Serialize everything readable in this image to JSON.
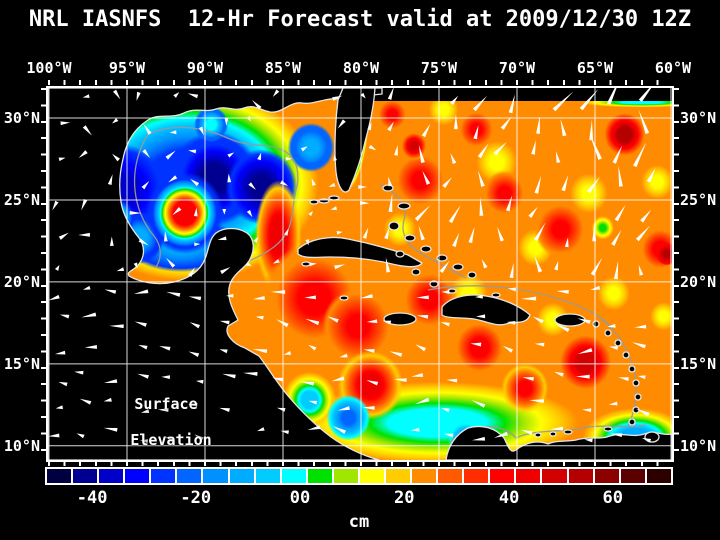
{
  "title": "NRL IASNFS  12-Hr Forecast valid at 2009/12/30 12Z",
  "axes": {
    "lon_labels": [
      {
        "label": "100°W",
        "deg": 100
      },
      {
        "label": "95°W",
        "deg": 95
      },
      {
        "label": "90°W",
        "deg": 90
      },
      {
        "label": "85°W",
        "deg": 85
      },
      {
        "label": "80°W",
        "deg": 80
      },
      {
        "label": "75°W",
        "deg": 75
      },
      {
        "label": "70°W",
        "deg": 70
      },
      {
        "label": "65°W",
        "deg": 65
      },
      {
        "label": "60°W",
        "deg": 60
      }
    ],
    "lat_labels": [
      {
        "label": "30°N",
        "deg": 30
      },
      {
        "label": "25°N",
        "deg": 25
      },
      {
        "label": "20°N",
        "deg": 20
      },
      {
        "label": "15°N",
        "deg": 15
      },
      {
        "label": "10°N",
        "deg": 10
      }
    ]
  },
  "annotation": {
    "line1": "Surface",
    "line2": "Elevation"
  },
  "vectors": {
    "color": "#ffffff"
  },
  "colorbar": {
    "unit": "cm",
    "tick_labels": [
      {
        "label": "-40",
        "pct": 7.5
      },
      {
        "label": "-20",
        "pct": 24.0
      },
      {
        "label": "00",
        "pct": 40.6
      },
      {
        "label": "20",
        "pct": 57.2
      },
      {
        "label": "40",
        "pct": 73.9
      },
      {
        "label": "60",
        "pct": 90.4
      }
    ],
    "cell_colors": [
      "#000041",
      "#000090",
      "#0000C8",
      "#0000FF",
      "#0033FF",
      "#0066FF",
      "#0090FF",
      "#00ACFF",
      "#00CCFF",
      "#00FFFF",
      "#00E100",
      "#A0E600",
      "#FFFF00",
      "#FFCC00",
      "#FF8C00",
      "#FF5A00",
      "#FF2D00",
      "#FF0000",
      "#F00000",
      "#D20000",
      "#B40000",
      "#8C0000",
      "#5A0000",
      "#2D0000"
    ],
    "cell_centers_cm": [
      -45,
      -40,
      -35,
      -30,
      -25,
      -20,
      -15,
      -10,
      -5,
      0,
      5,
      10,
      15,
      20,
      25,
      30,
      35,
      40,
      45,
      50,
      55,
      60,
      65,
      70
    ]
  },
  "chart_data": {
    "type": "heatmap",
    "title": "NRL IASNFS  12-Hr Forecast valid at 2009/12/30 12Z",
    "variable": "Surface Elevation",
    "unit": "cm",
    "x_ticks": [
      "100°W",
      "95°W",
      "90°W",
      "85°W",
      "80°W",
      "75°W",
      "70°W",
      "65°W",
      "60°W"
    ],
    "y_ticks": [
      "30°N",
      "25°N",
      "20°N",
      "15°N",
      "10°N"
    ],
    "x_range_deg_w": [
      100,
      60
    ],
    "y_range_deg_n": [
      10,
      30
    ],
    "colorbar_ticks_cm": [
      -40,
      -20,
      0,
      20,
      40,
      60
    ],
    "colorbar_range_cm": [
      -47.5,
      72.5
    ],
    "colorbar_cells": 24,
    "ambient_cm": {
      "gulf_of_mexico": -25,
      "atlantic_and_caribbean": 25
    },
    "features": [
      {
        "name": "gulf-of-mexico-basin-low",
        "lon_w": 91.0,
        "lat_n": 26.0,
        "value_cm": -25,
        "edge_cm": 25,
        "r_deg": 9.6,
        "ry_deg": 6.9
      },
      {
        "name": "west-gulf-low",
        "lon_w": 95.3,
        "lat_n": 25.6,
        "value_cm": -33,
        "edge_cm": -25,
        "r_deg": 2.8
      },
      {
        "name": "central-gulf-deep-low-1",
        "lon_w": 89.4,
        "lat_n": 26.3,
        "value_cm": -42,
        "edge_cm": -25,
        "r_deg": 2.9
      },
      {
        "name": "central-gulf-deep-low-2",
        "lon_w": 86.4,
        "lat_n": 25.8,
        "value_cm": -40,
        "edge_cm": -25,
        "r_deg": 2.3
      },
      {
        "name": "bay-of-campeche-band",
        "lon_w": 91.5,
        "lat_n": 22.3,
        "value_cm": -10,
        "edge_cm": -25,
        "r_deg": 3.6,
        "ry_deg": 1.7
      },
      {
        "name": "campeche-cyan-spot",
        "lon_w": 94.2,
        "lat_n": 22.7,
        "value_cm": -8,
        "edge_cm": -25,
        "r_deg": 1.6
      },
      {
        "name": "ne-gulf-shelf-spot",
        "lon_w": 89.6,
        "lat_n": 29.6,
        "value_cm": 0,
        "edge_cm": -22,
        "r_deg": 1.1
      },
      {
        "name": "west-florida-shelf",
        "lon_w": 83.2,
        "lat_n": 28.2,
        "value_cm": -8,
        "edge_cm": -22,
        "r_deg": 1.5
      },
      {
        "name": "gulf-warm-core-eddy",
        "lon_w": 91.3,
        "lat_n": 24.2,
        "value_cm": 42,
        "edge_cm": -25,
        "r_deg": 2.5
      },
      {
        "name": "west-gulf-green-spot",
        "lon_w": 95.7,
        "lat_n": 23.9,
        "value_cm": 5,
        "edge_cm": -25,
        "r_deg": 1.2
      },
      {
        "name": "south-caribbean-low-band",
        "lon_w": 75.1,
        "lat_n": 11.4,
        "value_cm": 0,
        "edge_cm": 25,
        "r_deg": 10.5,
        "ry_deg": 2.9
      },
      {
        "name": "se-corner-low-band",
        "lon_w": 62.4,
        "lat_n": 10.5,
        "value_cm": -10,
        "edge_cm": 20,
        "r_deg": 3.4,
        "ry_deg": 1.8
      },
      {
        "name": "sw-caribbean-low",
        "lon_w": 83.3,
        "lat_n": 12.8,
        "value_cm": -5,
        "edge_cm": 20,
        "r_deg": 1.7
      },
      {
        "name": "florida-gulf-stream-band",
        "lon_w": 80.4,
        "lat_n": 28.3,
        "value_cm": -28,
        "edge_cm": 25,
        "r_deg": 0.85,
        "ry_deg": 3.2,
        "rot_deg": 10
      },
      {
        "name": "yucatan-loop-current-jet",
        "lon_w": 85.3,
        "lat_n": 22.8,
        "value_cm": 45,
        "edge_cm": 20,
        "r_deg": 1.5,
        "ry_deg": 3.4
      },
      {
        "name": "atlantic-yellow-1",
        "lon_w": 74.7,
        "lat_n": 30.5,
        "value_cm": 15,
        "edge_cm": 25,
        "r_deg": 1.1
      },
      {
        "name": "atlantic-yellow-2",
        "lon_w": 71.3,
        "lat_n": 27.3,
        "value_cm": 15,
        "edge_cm": 25,
        "r_deg": 1.5
      },
      {
        "name": "atlantic-yellow-3",
        "lon_w": 68.8,
        "lat_n": 22.1,
        "value_cm": 15,
        "edge_cm": 25,
        "r_deg": 1.3
      },
      {
        "name": "atlantic-yellow-4",
        "lon_w": 65.4,
        "lat_n": 25.4,
        "value_cm": 17,
        "edge_cm": 25,
        "r_deg": 1.4
      },
      {
        "name": "atlantic-yellow-5",
        "lon_w": 61.0,
        "lat_n": 26.1,
        "value_cm": 15,
        "edge_cm": 25,
        "r_deg": 1.2
      },
      {
        "name": "caribbean-yellow-1",
        "lon_w": 77.5,
        "lat_n": 23.2,
        "value_cm": 17,
        "edge_cm": 25,
        "r_deg": 1.2
      },
      {
        "name": "caribbean-yellow-2",
        "lon_w": 73.1,
        "lat_n": 19.3,
        "value_cm": 15,
        "edge_cm": 25,
        "r_deg": 1.4
      },
      {
        "name": "caribbean-yellow-3",
        "lon_w": 63.8,
        "lat_n": 19.3,
        "value_cm": 15,
        "edge_cm": 25,
        "r_deg": 1.2
      },
      {
        "name": "caribbean-yellow-4",
        "lon_w": 60.6,
        "lat_n": 17.9,
        "value_cm": 17,
        "edge_cm": 25,
        "r_deg": 1.0
      },
      {
        "name": "caribbean-yellow-5",
        "lon_w": 67.7,
        "lat_n": 17.7,
        "value_cm": 15,
        "edge_cm": 25,
        "r_deg": 1.2
      },
      {
        "name": "atlantic-green-spot",
        "lon_w": 64.5,
        "lat_n": 23.3,
        "value_cm": 5,
        "edge_cm": 20,
        "r_deg": 0.7
      },
      {
        "name": "nw-caribbean-high",
        "lon_w": 83.0,
        "lat_n": 19.0,
        "value_cm": 42,
        "edge_cm": 25,
        "r_deg": 3.4
      },
      {
        "name": "windward-passage-high",
        "lon_w": 75.6,
        "lat_n": 18.9,
        "value_cm": 40,
        "edge_cm": 25,
        "r_deg": 1.8
      },
      {
        "name": "honduras-high",
        "lon_w": 80.2,
        "lat_n": 17.3,
        "value_cm": 40,
        "edge_cm": 25,
        "r_deg": 2.3
      },
      {
        "name": "colombia-basin-eddy",
        "lon_w": 79.4,
        "lat_n": 13.7,
        "value_cm": 45,
        "edge_cm": 20,
        "r_deg": 2.1
      },
      {
        "name": "central-caribbean-high",
        "lon_w": 72.4,
        "lat_n": 16.0,
        "value_cm": 42,
        "edge_cm": 25,
        "r_deg": 2.0
      },
      {
        "name": "venezuela-basin-high",
        "lon_w": 69.5,
        "lat_n": 13.5,
        "value_cm": 40,
        "edge_cm": 22,
        "r_deg": 1.5
      },
      {
        "name": "aves-ridge-high",
        "lon_w": 65.6,
        "lat_n": 15.1,
        "value_cm": 50,
        "edge_cm": 25,
        "r_deg": 1.9
      },
      {
        "name": "atlantic-high-1",
        "lon_w": 76.2,
        "lat_n": 26.2,
        "value_cm": 40,
        "edge_cm": 25,
        "r_deg": 1.7
      },
      {
        "name": "atlantic-high-2",
        "lon_w": 70.8,
        "lat_n": 25.4,
        "value_cm": 38,
        "edge_cm": 25,
        "r_deg": 1.4
      },
      {
        "name": "atlantic-high-3",
        "lon_w": 67.2,
        "lat_n": 23.2,
        "value_cm": 40,
        "edge_cm": 25,
        "r_deg": 1.7
      },
      {
        "name": "atlantic-high-4",
        "lon_w": 60.8,
        "lat_n": 22.0,
        "value_cm": 42,
        "edge_cm": 25,
        "r_deg": 1.6
      },
      {
        "name": "atlantic-strong-high",
        "lon_w": 63.1,
        "lat_n": 29.0,
        "value_cm": 55,
        "edge_cm": 25,
        "r_deg": 1.5
      },
      {
        "name": "atlantic-high-5",
        "lon_w": 72.6,
        "lat_n": 29.3,
        "value_cm": 38,
        "edge_cm": 25,
        "r_deg": 1.2
      },
      {
        "name": "blake-high",
        "lon_w": 78.0,
        "lat_n": 30.2,
        "value_cm": 40,
        "edge_cm": 25,
        "r_deg": 1.0
      },
      {
        "name": "bahamas-high",
        "lon_w": 76.6,
        "lat_n": 28.3,
        "value_cm": 48,
        "edge_cm": 25,
        "r_deg": 0.9
      },
      {
        "name": "atlantic-dark-spot",
        "lon_w": 60.4,
        "lat_n": 21.7,
        "value_cm": 55,
        "edge_cm": 40,
        "r_deg": 0.7
      },
      {
        "name": "panama-low",
        "lon_w": 80.8,
        "lat_n": 11.7,
        "value_cm": -20,
        "edge_cm": 0,
        "r_deg": 1.4
      },
      {
        "name": "venezuela-coastal-low",
        "lon_w": 73.3,
        "lat_n": 10.4,
        "value_cm": -15,
        "edge_cm": 0,
        "r_deg": 1.1
      },
      {
        "name": "tobago-low-spot",
        "lon_w": 60.9,
        "lat_n": 9.9,
        "value_cm": -20,
        "edge_cm": -5,
        "r_deg": 0.9
      },
      {
        "name": "ne-boundary-band",
        "lon_w": 62.0,
        "lat_n": 30.95,
        "value_cm": 0,
        "edge_cm": 25,
        "r_deg": 4.5,
        "ry_deg": 0.35
      }
    ]
  }
}
